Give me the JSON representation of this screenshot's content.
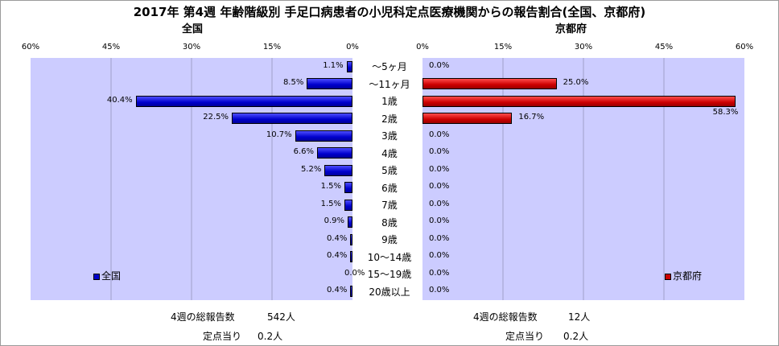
{
  "chart_data": {
    "type": "bar",
    "title": "2017年 第4週 年齢階級別 手足口病患者の小児科定点医療機関からの報告割合(全国、京都府)",
    "categories": [
      "～5ヶ月",
      "～11ヶ月",
      "1歳",
      "2歳",
      "3歳",
      "4歳",
      "5歳",
      "6歳",
      "7歳",
      "8歳",
      "9歳",
      "10～14歳",
      "15～19歳",
      "20歳以上"
    ],
    "xlim": [
      0,
      60
    ],
    "ticks": [
      "0%",
      "15%",
      "30%",
      "45%",
      "60%"
    ],
    "panels": [
      {
        "title": "全国",
        "legend": "全国",
        "color": "#0000cc",
        "direction": "left",
        "values": [
          1.1,
          8.5,
          40.4,
          22.5,
          10.7,
          6.6,
          5.2,
          1.5,
          1.5,
          0.9,
          0.4,
          0.4,
          0.0,
          0.4
        ],
        "labels": [
          "1.1%",
          "8.5%",
          "40.4%",
          "22.5%",
          "10.7%",
          "6.6%",
          "5.2%",
          "1.5%",
          "1.5%",
          "0.9%",
          "0.4%",
          "0.4%",
          "0.0%",
          "0.4%"
        ],
        "footer": {
          "total_label": "4週の総報告数",
          "total_value": "542人",
          "per_label": "定点当り",
          "per_value": "0.2人"
        }
      },
      {
        "title": "京都府",
        "legend": "京都府",
        "color": "#cc0000",
        "direction": "right",
        "values": [
          0.0,
          25.0,
          58.3,
          16.7,
          0.0,
          0.0,
          0.0,
          0.0,
          0.0,
          0.0,
          0.0,
          0.0,
          0.0,
          0.0
        ],
        "labels": [
          "0.0%",
          "25.0%",
          "58.3%",
          "16.7%",
          "0.0%",
          "0.0%",
          "0.0%",
          "0.0%",
          "0.0%",
          "0.0%",
          "0.0%",
          "0.0%",
          "0.0%",
          "0.0%"
        ],
        "footer": {
          "total_label": "4週の総報告数",
          "total_value": "12人",
          "per_label": "定点当り",
          "per_value": "0.2人"
        }
      }
    ]
  }
}
